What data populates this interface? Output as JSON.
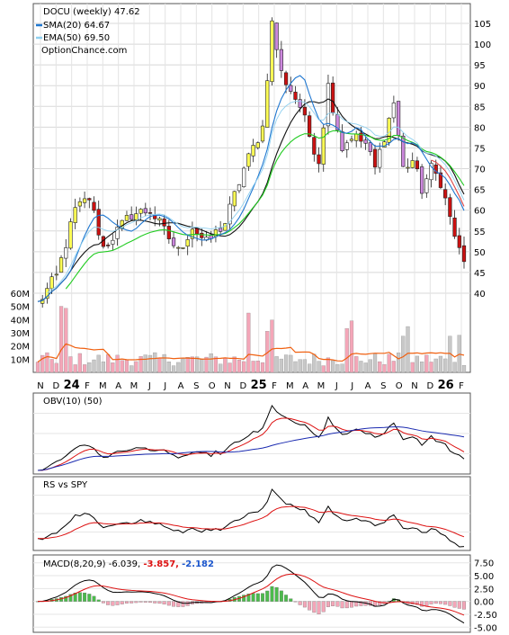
{
  "chart_data": [
    {
      "type": "candlestick",
      "title": "DOCU (weekly) 47.62",
      "watermark": "OptionChance.com",
      "legend": [
        {
          "label": "SMA(20) 64.67",
          "color": "#1f77d0"
        },
        {
          "label": "EMA(50) 69.50",
          "color": "#8fd0f0"
        }
      ],
      "legend_position": "top-left",
      "grid": true,
      "price_ticks": [
        "105",
        "100",
        "95",
        "90",
        "85",
        "80",
        "75",
        "70",
        "65",
        "60",
        "55",
        "50",
        "45",
        "40"
      ],
      "ylim": [
        40,
        107
      ],
      "volume_ticks": [
        "60M",
        "50M",
        "40M",
        "30M",
        "20M",
        "10M"
      ],
      "volume_max": 60,
      "x_labels": [
        "N",
        "D",
        "24",
        "F",
        "M",
        "A",
        "M",
        "J",
        "J",
        "A",
        "S",
        "O",
        "N",
        "D",
        "25",
        "F",
        "M",
        "A",
        "M",
        "J",
        "J",
        "A",
        "S",
        "O",
        "N",
        "D",
        "26",
        "F"
      ],
      "weekly_close_anchors": [
        [
          0,
          37.5
        ],
        [
          4,
          44
        ],
        [
          8,
          60
        ],
        [
          11,
          63
        ],
        [
          14,
          51
        ],
        [
          17,
          55
        ],
        [
          20,
          59
        ],
        [
          24,
          60
        ],
        [
          27,
          55
        ],
        [
          30,
          50
        ],
        [
          33,
          56
        ],
        [
          36,
          52
        ],
        [
          40,
          57
        ],
        [
          44,
          70
        ],
        [
          48,
          80
        ],
        [
          50,
          105
        ],
        [
          52,
          93
        ],
        [
          54,
          89
        ],
        [
          56,
          85
        ],
        [
          58,
          78
        ],
        [
          60,
          72
        ],
        [
          62,
          90
        ],
        [
          63,
          85
        ],
        [
          65,
          75
        ],
        [
          67,
          78
        ],
        [
          70,
          76
        ],
        [
          72,
          70
        ],
        [
          74,
          78
        ],
        [
          76,
          86
        ],
        [
          78,
          70
        ],
        [
          80,
          72
        ],
        [
          82,
          65
        ],
        [
          84,
          70
        ],
        [
          86,
          67
        ],
        [
          88,
          58
        ],
        [
          90,
          50
        ],
        [
          91,
          47.62
        ]
      ],
      "moving_averages": [
        {
          "name": "SMA(20)",
          "color": "#1f77d0",
          "final": 64.67
        },
        {
          "name": "EMA(50)",
          "color": "#8fd0f0",
          "final": 69.5
        }
      ]
    },
    {
      "type": "line",
      "title": "OBV(10) (50)"
    },
    {
      "type": "line",
      "title": "RS vs SPY"
    },
    {
      "type": "macd",
      "title": "MACD(8,20,9) -6.039,",
      "signal_label": "-3.857,",
      "histogram_label": "-2.182",
      "y_ticks": [
        "7.50",
        "5.00",
        "2.50",
        "0.00",
        "-2.50",
        "-5.00"
      ],
      "ylim": [
        -6,
        8.5
      ]
    }
  ],
  "colors": {
    "up_candle": "#ffff55",
    "down_candle": "#cc1111",
    "up_vol": "#f4a6b8",
    "down_vol": "#c8c8c8",
    "vol_ma": "#f06010",
    "ema_slow": "#22cc22",
    "sma_dark": "#111111",
    "obv_ma": "#1a2ab0",
    "signal": "#dd1111",
    "hist_up": "#4cbb4c",
    "hist_down": "#f4a6b8"
  }
}
